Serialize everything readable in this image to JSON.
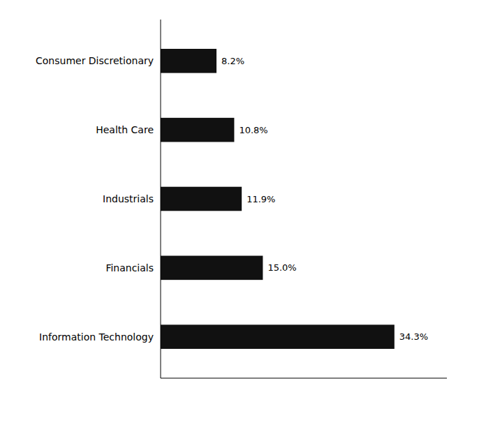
{
  "chart_data": {
    "type": "bar",
    "orientation": "horizontal",
    "categories": [
      "Information Technology",
      "Financials",
      "Industrials",
      "Health Care",
      "Consumer Discretionary"
    ],
    "values": [
      34.3,
      15.0,
      11.9,
      10.8,
      8.2
    ],
    "value_labels": [
      "34.3%",
      "15.0%",
      "11.9%",
      "10.8%",
      "8.2%"
    ],
    "data_labels": true,
    "color": "#111111",
    "xlim": [
      0,
      42
    ],
    "tick_labels": "y"
  }
}
